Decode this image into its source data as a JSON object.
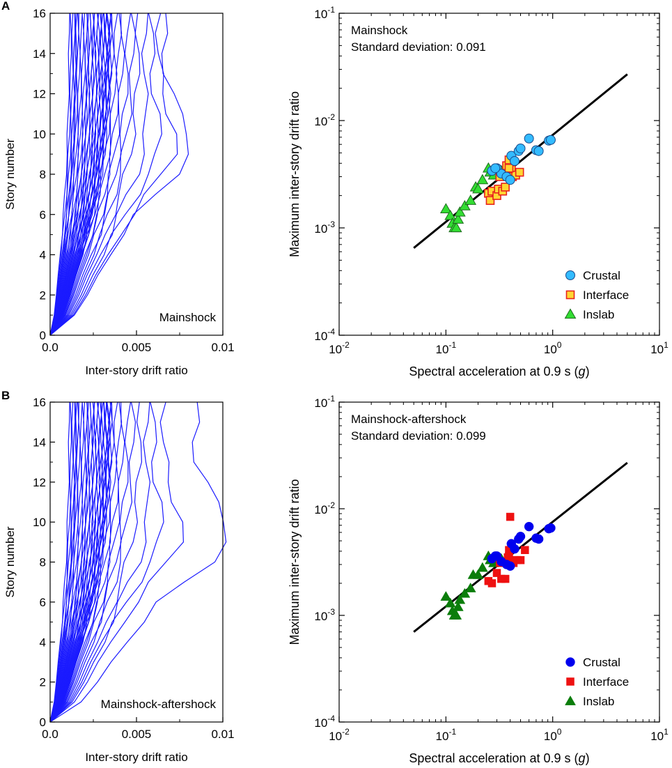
{
  "figure": {
    "panel_a_letter": "A",
    "panel_b_letter": "B"
  },
  "colors": {
    "profile_line": "#1a1aff",
    "regression_line": "#000000",
    "crustal_open": "#33bbff",
    "interface_open_fill": "#ffd633",
    "interface_open_edge": "#e8231e",
    "inslab_open": "#33dd33",
    "crustal_filled": "#0000ee",
    "interface_filled": "#ee1111",
    "inslab_filled": "#0b7d0b"
  },
  "chart_data": [
    {
      "id": "A-profiles",
      "type": "line",
      "annotation": "Mainshock",
      "xlabel": "Inter-story drift ratio",
      "ylabel": "Story number",
      "xlim": [
        0,
        0.01
      ],
      "ylim": [
        0,
        16
      ],
      "xticks": [
        0,
        0.005,
        0.01
      ],
      "xtick_labels": [
        "0.0",
        "0.005",
        "0.01"
      ],
      "yticks": [
        0,
        2,
        4,
        6,
        8,
        10,
        12,
        14,
        16
      ],
      "ytick_labels": [
        "0",
        "2",
        "4",
        "6",
        "8",
        "10",
        "12",
        "14",
        "16"
      ],
      "stories": [
        0,
        1,
        2,
        3,
        4,
        5,
        6,
        7,
        8,
        9,
        10,
        11,
        12,
        13,
        14,
        15,
        16
      ],
      "profile_top_drifts": [
        0.0011,
        0.0012,
        0.0013,
        0.0014,
        0.0015,
        0.0015,
        0.0016,
        0.0017,
        0.0018,
        0.0019,
        0.002,
        0.0021,
        0.0022,
        0.0022,
        0.0023,
        0.0024,
        0.0025,
        0.0025,
        0.0026,
        0.0027,
        0.0028,
        0.0028,
        0.0029,
        0.003,
        0.003,
        0.0031,
        0.0032,
        0.0032,
        0.0033,
        0.0033,
        0.0034,
        0.0034,
        0.0035,
        0.0035,
        0.0036,
        0.0038,
        0.004,
        0.0042,
        0.0045,
        0.0048,
        0.0051,
        0.0055,
        0.0059,
        0.0063,
        0.0066
      ],
      "profile_count": 45
    },
    {
      "id": "A-scatter",
      "type": "scatter",
      "scale": "log-log",
      "title_lines": [
        "Mainshock",
        "Standard deviation: 0.091"
      ],
      "xlabel_main": "Spectral acceleration at 0.9 s (",
      "xlabel_unit": "g",
      "xlabel_end": ")",
      "ylabel": "Maximum inter-story drift ratio",
      "xlim": [
        0.01,
        10
      ],
      "ylim": [
        0.0001,
        0.1
      ],
      "tick_base": "10",
      "xtick_exponents": [
        "-2",
        "0",
        "1"
      ],
      "xtick_exponent_minus1": "-1",
      "ytick_exponents": [
        "-4",
        "-3",
        "-2",
        "-1"
      ],
      "regression": {
        "x": [
          0.05,
          5.0
        ],
        "y": [
          0.00065,
          0.027
        ]
      },
      "marker_style": "open",
      "legend": [
        "Crustal",
        "Interface",
        "Inslab"
      ],
      "series": [
        {
          "name": "Crustal",
          "marker": "circle",
          "points": [
            [
              0.27,
              0.0034
            ],
            [
              0.3,
              0.0036
            ],
            [
              0.33,
              0.0032
            ],
            [
              0.37,
              0.003
            ],
            [
              0.4,
              0.0028
            ],
            [
              0.41,
              0.0047
            ],
            [
              0.44,
              0.0042
            ],
            [
              0.48,
              0.0052
            ],
            [
              0.5,
              0.0055
            ],
            [
              0.6,
              0.0068
            ],
            [
              0.7,
              0.0053
            ],
            [
              0.74,
              0.0052
            ],
            [
              0.92,
              0.0065
            ],
            [
              0.96,
              0.0066
            ],
            [
              0.29,
              0.0036
            ]
          ]
        },
        {
          "name": "Interface",
          "marker": "square",
          "points": [
            [
              0.25,
              0.0021
            ],
            [
              0.26,
              0.0018
            ],
            [
              0.27,
              0.0022
            ],
            [
              0.3,
              0.002
            ],
            [
              0.31,
              0.0023
            ],
            [
              0.34,
              0.0022
            ],
            [
              0.36,
              0.0024
            ],
            [
              0.37,
              0.0038
            ],
            [
              0.39,
              0.0043
            ],
            [
              0.41,
              0.0035
            ],
            [
              0.42,
              0.003
            ],
            [
              0.45,
              0.0031
            ],
            [
              0.49,
              0.0033
            ],
            [
              0.32,
              0.003
            ],
            [
              0.39,
              0.0036
            ]
          ]
        },
        {
          "name": "Inslab",
          "marker": "triangle",
          "points": [
            [
              0.1,
              0.0015
            ],
            [
              0.11,
              0.0013
            ],
            [
              0.115,
              0.0011
            ],
            [
              0.12,
              0.001
            ],
            [
              0.125,
              0.001
            ],
            [
              0.13,
              0.0012
            ],
            [
              0.135,
              0.0014
            ],
            [
              0.15,
              0.0016
            ],
            [
              0.17,
              0.0018
            ],
            [
              0.19,
              0.0024
            ],
            [
              0.2,
              0.0023
            ],
            [
              0.22,
              0.0028
            ],
            [
              0.25,
              0.0036
            ],
            [
              0.26,
              0.0033
            ],
            [
              0.28,
              0.0031
            ],
            [
              0.33,
              0.0034
            ]
          ]
        }
      ]
    },
    {
      "id": "B-profiles",
      "type": "line",
      "annotation": "Mainshock-aftershock",
      "xlabel": "Inter-story drift ratio",
      "ylabel": "Story number",
      "xlim": [
        0,
        0.01
      ],
      "ylim": [
        0,
        16
      ],
      "xticks": [
        0,
        0.005,
        0.01
      ],
      "xtick_labels": [
        "0.0",
        "0.005",
        "0.01"
      ],
      "yticks": [
        0,
        2,
        4,
        6,
        8,
        10,
        12,
        14,
        16
      ],
      "ytick_labels": [
        "0",
        "2",
        "4",
        "6",
        "8",
        "10",
        "12",
        "14",
        "16"
      ],
      "stories": [
        0,
        1,
        2,
        3,
        4,
        5,
        6,
        7,
        8,
        9,
        10,
        11,
        12,
        13,
        14,
        15,
        16
      ],
      "profile_top_drifts": [
        0.0011,
        0.0012,
        0.0013,
        0.0014,
        0.0015,
        0.0015,
        0.0016,
        0.0017,
        0.0018,
        0.0019,
        0.002,
        0.0021,
        0.0022,
        0.0022,
        0.0023,
        0.0024,
        0.0025,
        0.0025,
        0.0026,
        0.0027,
        0.0028,
        0.0028,
        0.0029,
        0.003,
        0.003,
        0.0031,
        0.0032,
        0.0032,
        0.0033,
        0.0033,
        0.0034,
        0.0034,
        0.0035,
        0.0035,
        0.0036,
        0.0038,
        0.004,
        0.0042,
        0.0045,
        0.0048,
        0.0052,
        0.0056,
        0.006,
        0.0066,
        0.0084
      ],
      "profile_count": 45
    },
    {
      "id": "B-scatter",
      "type": "scatter",
      "scale": "log-log",
      "title_lines": [
        "Mainshock-aftershock",
        "Standard deviation: 0.099"
      ],
      "xlabel_main": "Spectral acceleration at 0.9 s (",
      "xlabel_unit": "g",
      "xlabel_end": ")",
      "ylabel": "Maximum inter-story drift ratio",
      "xlim": [
        0.01,
        10
      ],
      "ylim": [
        0.0001,
        0.1
      ],
      "tick_base": "10",
      "xtick_exponents": [
        "-2",
        "0",
        "1"
      ],
      "xtick_exponent_minus1": "-1",
      "ytick_exponents": [
        "-4",
        "-3",
        "-2",
        "-1"
      ],
      "regression": {
        "x": [
          0.05,
          5.0
        ],
        "y": [
          0.0007,
          0.027
        ]
      },
      "marker_style": "filled",
      "legend": [
        "Crustal",
        "Interface",
        "Inslab"
      ],
      "series": [
        {
          "name": "Crustal",
          "marker": "circle",
          "points": [
            [
              0.27,
              0.0034
            ],
            [
              0.3,
              0.0036
            ],
            [
              0.33,
              0.0032
            ],
            [
              0.37,
              0.003
            ],
            [
              0.4,
              0.0029
            ],
            [
              0.41,
              0.0047
            ],
            [
              0.44,
              0.0042
            ],
            [
              0.48,
              0.0052
            ],
            [
              0.5,
              0.0055
            ],
            [
              0.6,
              0.0068
            ],
            [
              0.7,
              0.0053
            ],
            [
              0.74,
              0.0052
            ],
            [
              0.92,
              0.0065
            ],
            [
              0.96,
              0.0066
            ],
            [
              0.29,
              0.0036
            ]
          ]
        },
        {
          "name": "Interface",
          "marker": "square",
          "points": [
            [
              0.25,
              0.0021
            ],
            [
              0.27,
              0.002
            ],
            [
              0.3,
              0.0025
            ],
            [
              0.33,
              0.0022
            ],
            [
              0.36,
              0.0022
            ],
            [
              0.38,
              0.0035
            ],
            [
              0.39,
              0.0041
            ],
            [
              0.4,
              0.0084
            ],
            [
              0.41,
              0.0032
            ],
            [
              0.43,
              0.0031
            ],
            [
              0.46,
              0.0033
            ],
            [
              0.5,
              0.0033
            ],
            [
              0.55,
              0.0041
            ],
            [
              0.32,
              0.0031
            ],
            [
              0.39,
              0.0036
            ]
          ]
        },
        {
          "name": "Inslab",
          "marker": "triangle",
          "points": [
            [
              0.1,
              0.0015
            ],
            [
              0.11,
              0.0013
            ],
            [
              0.115,
              0.0011
            ],
            [
              0.12,
              0.001
            ],
            [
              0.125,
              0.001
            ],
            [
              0.13,
              0.0012
            ],
            [
              0.135,
              0.0014
            ],
            [
              0.15,
              0.0016
            ],
            [
              0.17,
              0.0018
            ],
            [
              0.18,
              0.0024
            ],
            [
              0.2,
              0.0024
            ],
            [
              0.22,
              0.0028
            ],
            [
              0.25,
              0.0036
            ],
            [
              0.26,
              0.0033
            ],
            [
              0.28,
              0.0031
            ],
            [
              0.33,
              0.0034
            ]
          ]
        }
      ]
    }
  ]
}
